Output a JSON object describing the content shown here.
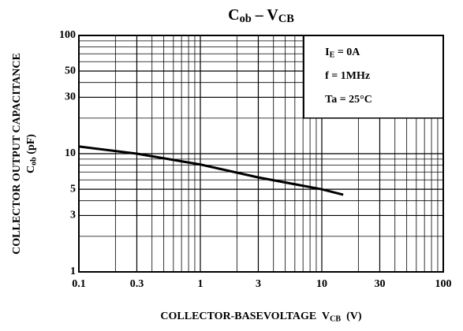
{
  "chart_data": {
    "type": "line",
    "title": [
      {
        "text": "C"
      },
      {
        "text": "ob",
        "sub": true
      },
      {
        "text": " – V"
      },
      {
        "text": "CB",
        "sub": true
      }
    ],
    "y_label": "COLLECTOR OUTPUT CAPACITANCE",
    "y_label2": [
      {
        "text": "C"
      },
      {
        "text": "ob",
        "sub": true
      },
      {
        "text": " (pF)"
      }
    ],
    "x_label": [
      {
        "text": "COLLECTOR-BASEVOLTAGE  V"
      },
      {
        "text": "CB",
        "sub": true
      },
      {
        "text": "  (V)"
      }
    ],
    "annotations": [
      [
        {
          "text": "I"
        },
        {
          "text": "E",
          "sub": true
        },
        {
          "text": " = 0A"
        }
      ],
      [
        {
          "text": "f = 1MHz"
        }
      ],
      [
        {
          "text": "Ta = 25°C"
        }
      ]
    ],
    "x": [
      0.1,
      0.3,
      1,
      3,
      10,
      15
    ],
    "series": [
      {
        "name": null,
        "color": "#000000",
        "values": [
          11.5,
          10,
          8.1,
          6.3,
          5,
          4.5
        ]
      }
    ],
    "xlim": [
      0.1,
      100
    ],
    "ylim": [
      1,
      100
    ],
    "xticks": [
      0.1,
      0.3,
      1,
      3,
      10,
      30,
      100
    ],
    "yticks": [
      1,
      3,
      5,
      10,
      30,
      50,
      100
    ],
    "xscale": "log",
    "yscale": "log",
    "grid": true
  }
}
